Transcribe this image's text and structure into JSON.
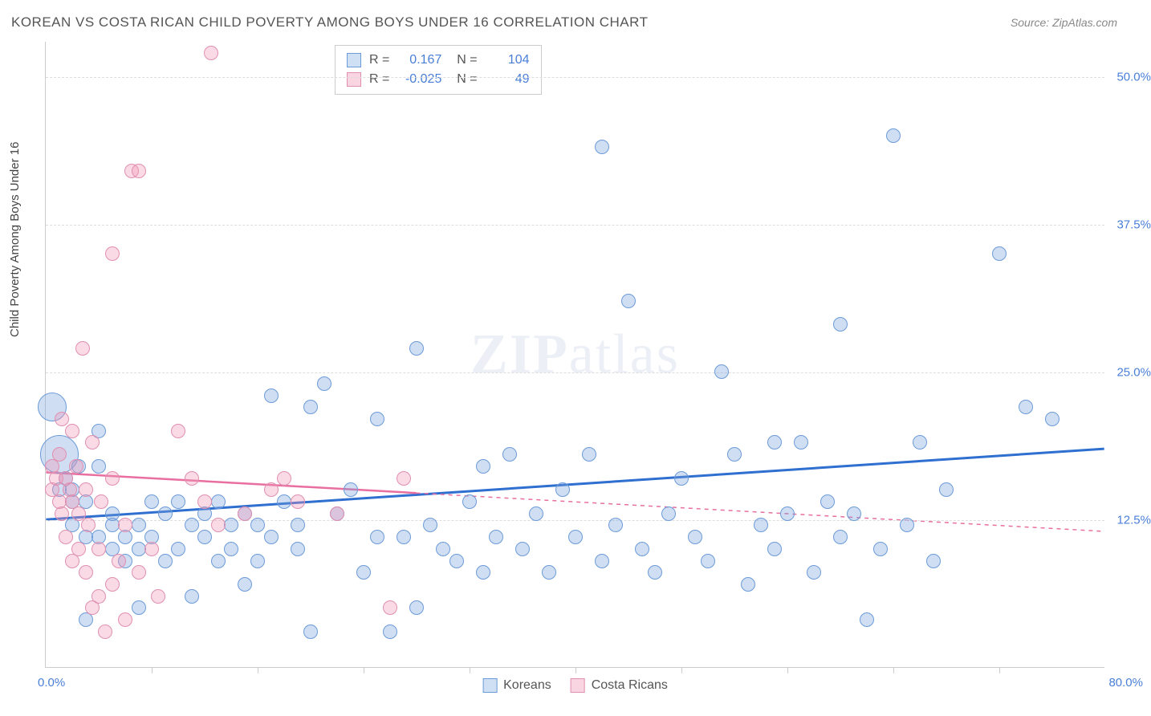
{
  "title": "KOREAN VS COSTA RICAN CHILD POVERTY AMONG BOYS UNDER 16 CORRELATION CHART",
  "source": "Source: ZipAtlas.com",
  "y_axis_label": "Child Poverty Among Boys Under 16",
  "watermark_bold": "ZIP",
  "watermark_light": "atlas",
  "chart": {
    "type": "scatter",
    "xlim": [
      0,
      80
    ],
    "ylim": [
      0,
      53
    ],
    "x_origin_label": "0.0%",
    "x_max_label": "80.0%",
    "y_ticks": [
      {
        "v": 12.5,
        "label": "12.5%"
      },
      {
        "v": 25.0,
        "label": "25.0%"
      },
      {
        "v": 37.5,
        "label": "37.5%"
      },
      {
        "v": 50.0,
        "label": "50.0%"
      }
    ],
    "x_tick_positions": [
      8,
      16,
      24,
      32,
      40,
      48,
      56,
      64,
      72
    ],
    "background_color": "#ffffff",
    "grid_color": "#dddddd",
    "axis_color": "#cccccc",
    "text_color": "#555555",
    "value_color": "#4a7fd8"
  },
  "series": [
    {
      "name": "Koreans",
      "color_fill": "rgba(120,160,220,0.35)",
      "color_stroke": "#6b9bd8",
      "swatch_fill": "#cfe0f5",
      "swatch_border": "#6b9bd8",
      "r_value": "0.167",
      "n_value": "104",
      "marker_radius": 9,
      "trend": {
        "x1": 0,
        "y1": 12.5,
        "x2": 80,
        "y2": 18.5,
        "solid_until_x": 80,
        "color": "#2f6fd0",
        "width": 3
      },
      "points": [
        [
          0.5,
          22,
          18
        ],
        [
          1,
          18,
          24
        ],
        [
          1,
          15
        ],
        [
          1.5,
          16
        ],
        [
          2,
          15
        ],
        [
          2,
          14
        ],
        [
          2.5,
          17
        ],
        [
          2,
          12
        ],
        [
          3,
          11
        ],
        [
          3,
          14
        ],
        [
          4,
          20
        ],
        [
          4,
          17
        ],
        [
          4,
          11
        ],
        [
          5,
          13
        ],
        [
          5,
          10
        ],
        [
          5,
          12
        ],
        [
          6,
          11
        ],
        [
          6,
          9
        ],
        [
          7,
          12
        ],
        [
          7,
          10
        ],
        [
          8,
          14
        ],
        [
          8,
          11
        ],
        [
          9,
          13
        ],
        [
          9,
          9
        ],
        [
          10,
          14
        ],
        [
          10,
          10
        ],
        [
          11,
          12
        ],
        [
          12,
          13
        ],
        [
          12,
          11
        ],
        [
          13,
          14
        ],
        [
          13,
          9
        ],
        [
          14,
          12
        ],
        [
          14,
          10
        ],
        [
          15,
          13
        ],
        [
          16,
          12
        ],
        [
          16,
          9
        ],
        [
          17,
          23
        ],
        [
          17,
          11
        ],
        [
          18,
          14
        ],
        [
          19,
          12
        ],
        [
          19,
          10
        ],
        [
          20,
          3
        ],
        [
          20,
          22
        ],
        [
          21,
          24
        ],
        [
          22,
          13
        ],
        [
          23,
          15
        ],
        [
          24,
          8
        ],
        [
          25,
          21
        ],
        [
          25,
          11
        ],
        [
          26,
          3
        ],
        [
          27,
          11
        ],
        [
          28,
          27
        ],
        [
          28,
          5
        ],
        [
          29,
          12
        ],
        [
          30,
          10
        ],
        [
          31,
          9
        ],
        [
          32,
          14
        ],
        [
          33,
          8
        ],
        [
          33,
          17
        ],
        [
          34,
          11
        ],
        [
          35,
          18
        ],
        [
          36,
          10
        ],
        [
          37,
          13
        ],
        [
          38,
          8
        ],
        [
          39,
          15
        ],
        [
          40,
          11
        ],
        [
          41,
          18
        ],
        [
          42,
          9
        ],
        [
          42,
          44
        ],
        [
          43,
          12
        ],
        [
          44,
          31
        ],
        [
          45,
          10
        ],
        [
          46,
          8
        ],
        [
          47,
          13
        ],
        [
          48,
          16
        ],
        [
          49,
          11
        ],
        [
          50,
          9
        ],
        [
          51,
          25
        ],
        [
          52,
          18
        ],
        [
          53,
          7
        ],
        [
          54,
          12
        ],
        [
          55,
          10
        ],
        [
          55,
          19
        ],
        [
          56,
          13
        ],
        [
          57,
          19
        ],
        [
          58,
          8
        ],
        [
          59,
          14
        ],
        [
          60,
          29
        ],
        [
          60,
          11
        ],
        [
          61,
          13
        ],
        [
          62,
          4
        ],
        [
          63,
          10
        ],
        [
          64,
          45
        ],
        [
          65,
          12
        ],
        [
          66,
          19
        ],
        [
          67,
          9
        ],
        [
          68,
          15
        ],
        [
          72,
          35
        ],
        [
          74,
          22
        ],
        [
          76,
          21
        ],
        [
          3,
          4
        ],
        [
          7,
          5
        ],
        [
          11,
          6
        ],
        [
          15,
          7
        ]
      ]
    },
    {
      "name": "Costa Ricans",
      "color_fill": "rgba(240,150,180,0.35)",
      "color_stroke": "#e08fb0",
      "swatch_fill": "#f8d5e0",
      "swatch_border": "#e08fb0",
      "r_value": "-0.025",
      "n_value": "49",
      "marker_radius": 9,
      "trend": {
        "x1": 0,
        "y1": 16.5,
        "x2": 80,
        "y2": 11.5,
        "solid_until_x": 28,
        "color": "#e86fa0",
        "width": 2.5
      },
      "points": [
        [
          0.5,
          17
        ],
        [
          0.5,
          15
        ],
        [
          0.8,
          16
        ],
        [
          1,
          14
        ],
        [
          1,
          18
        ],
        [
          1.2,
          13
        ],
        [
          1.2,
          21
        ],
        [
          1.5,
          16
        ],
        [
          1.5,
          11
        ],
        [
          1.8,
          15
        ],
        [
          2,
          20
        ],
        [
          2,
          9
        ],
        [
          2,
          14
        ],
        [
          2.3,
          17
        ],
        [
          2.5,
          13
        ],
        [
          2.5,
          10
        ],
        [
          2.8,
          27
        ],
        [
          3,
          15
        ],
        [
          3,
          8
        ],
        [
          3.2,
          12
        ],
        [
          3.5,
          5
        ],
        [
          3.5,
          19
        ],
        [
          4,
          6
        ],
        [
          4,
          10
        ],
        [
          4.2,
          14
        ],
        [
          4.5,
          3
        ],
        [
          5,
          7
        ],
        [
          5,
          16
        ],
        [
          5,
          35
        ],
        [
          5.5,
          9
        ],
        [
          6,
          4
        ],
        [
          6,
          12
        ],
        [
          6.5,
          42
        ],
        [
          7,
          42
        ],
        [
          7,
          8
        ],
        [
          8,
          10
        ],
        [
          8.5,
          6
        ],
        [
          10,
          20
        ],
        [
          11,
          16
        ],
        [
          12,
          14
        ],
        [
          12.5,
          52
        ],
        [
          13,
          12
        ],
        [
          15,
          13
        ],
        [
          17,
          15
        ],
        [
          18,
          16
        ],
        [
          19,
          14
        ],
        [
          22,
          13
        ],
        [
          26,
          5
        ],
        [
          27,
          16
        ]
      ]
    }
  ],
  "legend": {
    "items": [
      {
        "label": "Koreans"
      },
      {
        "label": "Costa Ricans"
      }
    ]
  }
}
